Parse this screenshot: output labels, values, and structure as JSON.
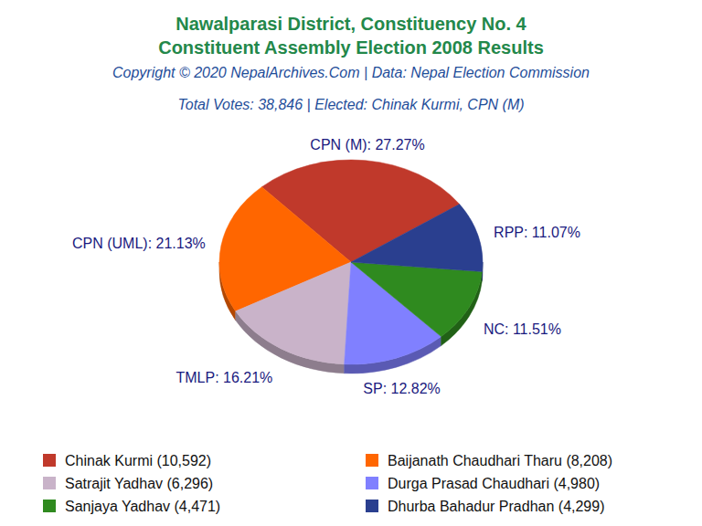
{
  "chart_data": {
    "type": "pie",
    "title": "Nawalparasi District, Constituency No. 4",
    "subtitle": "Constituent Assembly Election 2008 Results",
    "annotations": [
      "Copyright © 2020 NepalArchives.Com | Data: Nepal Election Commission",
      "Total Votes: 38,846 | Elected: Chinak Kurmi, CPN (M)"
    ],
    "categories": [
      "Chinak Kurmi (10,592)",
      "Baijanath Chaudhari Tharu (8,208)",
      "Satrajit Yadhav (6,296)",
      "Durga Prasad Chaudhari (4,980)",
      "Sanjaya Yadhav (4,471)",
      "Dhurba Bahadur Pradhan (4,299)"
    ],
    "values": [
      27.27,
      21.13,
      16.21,
      12.82,
      11.51,
      11.07
    ],
    "value_labels": [
      "CPN (M): 27.27%",
      "CPN (UML): 21.13%",
      "TMLP: 16.21%",
      "SP: 12.82%",
      "NC: 11.51%",
      "RPP: 11.07%"
    ],
    "colors": [
      "#c0392b",
      "#ff6600",
      "#c9b3c9",
      "#8080ff",
      "#2f8a1f",
      "#2a3f8f"
    ],
    "data_labels": true,
    "legend": "bottom"
  }
}
